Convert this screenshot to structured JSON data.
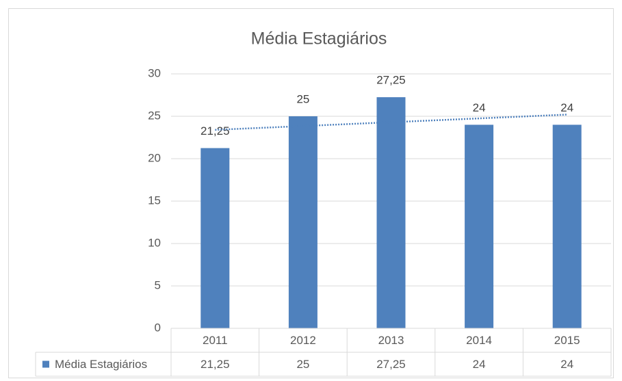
{
  "chart_data": {
    "type": "bar",
    "title": "Média Estagiários",
    "categories": [
      "2011",
      "2012",
      "2013",
      "2014",
      "2015"
    ],
    "series": [
      {
        "name": "Média Estagiários",
        "color": "#4f81bd",
        "values": [
          21.25,
          25,
          27.25,
          24,
          24
        ],
        "value_labels": [
          "21,25",
          "25",
          "27,25",
          "24",
          "24"
        ]
      }
    ],
    "ylim": [
      0,
      30
    ],
    "yticks": [
      0,
      5,
      10,
      15,
      20,
      25,
      30
    ],
    "grid": true,
    "trendline": "linear",
    "data_table": true
  }
}
